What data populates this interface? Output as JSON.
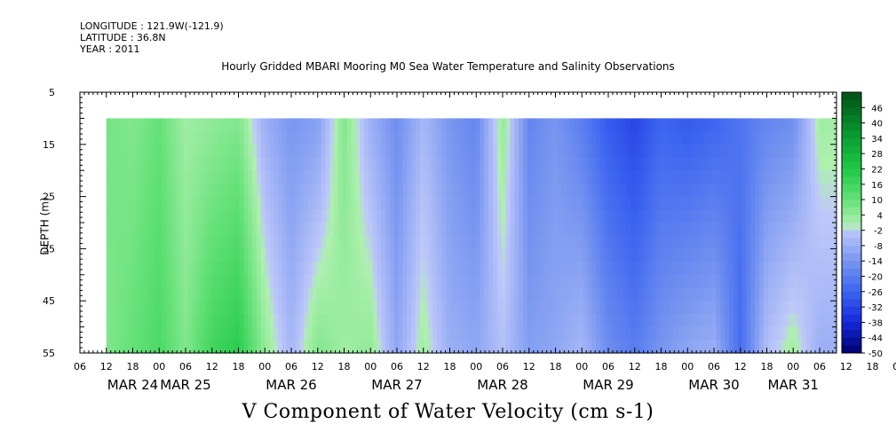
{
  "header": {
    "longitude": "LONGITUDE : 121.9W(-121.9)",
    "latitude": "LATITUDE : 36.8N",
    "year": "YEAR : 2011"
  },
  "chart_data": {
    "type": "heatmap",
    "title": "Hourly Gridded MBARI Mooring M0 Sea Water Temperature and Salinity Observations",
    "xlabel": "",
    "ylabel": "DEPTH (m)",
    "bottom_title": "V Component of Water Velocity (cm s-1)",
    "y_ticks": [
      5,
      15,
      25,
      35,
      45,
      55
    ],
    "ylim": [
      5,
      55
    ],
    "data_depth_range": [
      10,
      55
    ],
    "x_hour_ticks": [
      "06",
      "12",
      "18",
      "00",
      "06",
      "12",
      "18",
      "00",
      "06",
      "12",
      "18",
      "00",
      "06",
      "12",
      "18",
      "00",
      "06",
      "12",
      "18",
      "00",
      "06",
      "12",
      "18",
      "00",
      "06",
      "12",
      "18",
      "00",
      "06",
      "12",
      "18",
      "00",
      "06"
    ],
    "x_day_labels": [
      "MAR 24",
      "MAR 25",
      "MAR 26",
      "MAR 27",
      "MAR 28",
      "MAR 29",
      "MAR 30",
      "MAR 31"
    ],
    "x_day_hour_index": [
      2,
      4,
      8,
      12,
      16,
      20,
      24,
      27
    ],
    "data_start_hour_index": 1,
    "colorbar_labels": [
      "46",
      "40",
      "34",
      "28",
      "22",
      "16",
      "10",
      "4",
      "-2",
      "-8",
      "-14",
      "-20",
      "-26",
      "-32",
      "-38",
      "-44",
      "-50"
    ],
    "colorbar_range": [
      -50,
      52
    ],
    "v_profile_by_hour_index": [
      {
        "h": 1.0,
        "top": 8,
        "bottom": 6
      },
      {
        "h": 2.0,
        "top": 6,
        "bottom": 10
      },
      {
        "h": 3.0,
        "top": 10,
        "bottom": 14
      },
      {
        "h": 4.0,
        "top": 2,
        "bottom": 6
      },
      {
        "h": 5.0,
        "top": 4,
        "bottom": 16
      },
      {
        "h": 6.0,
        "top": 6,
        "bottom": 20
      },
      {
        "h": 7.0,
        "top": -8,
        "bottom": 4
      },
      {
        "h": 8.0,
        "top": -14,
        "bottom": -6
      },
      {
        "h": 9.0,
        "top": -12,
        "bottom": 6
      },
      {
        "h": 10.0,
        "top": 6,
        "bottom": 2
      },
      {
        "h": 11.0,
        "top": -8,
        "bottom": 4
      },
      {
        "h": 12.0,
        "top": -16,
        "bottom": -10
      },
      {
        "h": 13.0,
        "top": -6,
        "bottom": 2
      },
      {
        "h": 14.0,
        "top": -14,
        "bottom": -8
      },
      {
        "h": 15.0,
        "top": -18,
        "bottom": -10
      },
      {
        "h": 16.0,
        "top": 4,
        "bottom": -4
      },
      {
        "h": 17.0,
        "top": -18,
        "bottom": -12
      },
      {
        "h": 18.0,
        "top": -14,
        "bottom": -10
      },
      {
        "h": 19.0,
        "top": -20,
        "bottom": -6
      },
      {
        "h": 20.0,
        "top": -28,
        "bottom": -16
      },
      {
        "h": 21.0,
        "top": -32,
        "bottom": -20
      },
      {
        "h": 22.0,
        "top": -26,
        "bottom": -14
      },
      {
        "h": 23.0,
        "top": -28,
        "bottom": -10
      },
      {
        "h": 24.0,
        "top": -26,
        "bottom": -8
      },
      {
        "h": 25.0,
        "top": -22,
        "bottom": -24
      },
      {
        "h": 26.0,
        "top": -18,
        "bottom": -4
      },
      {
        "h": 27.0,
        "top": -16,
        "bottom": 2
      },
      {
        "h": 28.0,
        "top": 2,
        "bottom": -8
      }
    ],
    "colors": {
      "frame": "#000000",
      "missing": "#ffffff"
    }
  }
}
